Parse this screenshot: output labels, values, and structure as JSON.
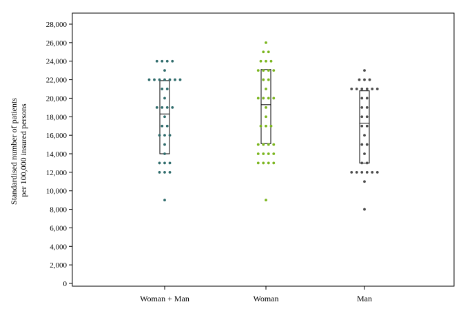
{
  "chart_data": {
    "type": "scatter",
    "subtype": "dot-plot-with-box",
    "title": "",
    "ylabel_lines": [
      "Standardised number of patients",
      "per 100,000 insured persons"
    ],
    "xlabel": "",
    "ylim": [
      0,
      29000
    ],
    "yticks": [
      0,
      2000,
      4000,
      6000,
      8000,
      10000,
      12000,
      14000,
      16000,
      18000,
      20000,
      22000,
      24000,
      26000,
      28000
    ],
    "ytick_labels": [
      "0",
      "2,000",
      "4,000",
      "6,000",
      "8,000",
      "10,000",
      "12,000",
      "14,000",
      "16,000",
      "18,000",
      "20,000",
      "22,000",
      "24,000",
      "26,000",
      "28,000"
    ],
    "grid": false,
    "legend": "none",
    "categories": [
      "Woman + Man",
      "Woman",
      "Man"
    ],
    "series": [
      {
        "category": "Woman + Man",
        "color": "#2e6b6b",
        "box": {
          "q1": 14000,
          "median": 18300,
          "q3": 21900
        },
        "points": [
          9000,
          12000,
          12000,
          12000,
          13000,
          13000,
          13000,
          14000,
          15000,
          16000,
          16000,
          16000,
          17000,
          17000,
          18000,
          19000,
          19000,
          19000,
          19000,
          20000,
          21000,
          21000,
          22000,
          22000,
          22000,
          22000,
          22000,
          22000,
          22000,
          23000,
          24000,
          24000,
          24000,
          24000
        ]
      },
      {
        "category": "Woman",
        "color": "#7ab51d",
        "box": {
          "q1": 15100,
          "median": 19300,
          "q3": 23100
        },
        "points": [
          9000,
          13000,
          13000,
          13000,
          13000,
          14000,
          14000,
          14000,
          14000,
          15000,
          15000,
          15000,
          15000,
          17000,
          17000,
          17000,
          18000,
          19000,
          20000,
          20000,
          20000,
          20000,
          21000,
          22000,
          22000,
          23000,
          23000,
          23000,
          23000,
          24000,
          24000,
          24000,
          25000,
          25000,
          26000
        ]
      },
      {
        "category": "Man",
        "color": "#4a4a4a",
        "box": {
          "q1": 13000,
          "median": 17300,
          "q3": 20800
        },
        "points": [
          8000,
          11000,
          12000,
          12000,
          12000,
          12000,
          12000,
          12000,
          13000,
          13000,
          14000,
          15000,
          15000,
          16000,
          17000,
          17000,
          18000,
          18000,
          19000,
          19000,
          20000,
          20000,
          21000,
          21000,
          21000,
          21000,
          21000,
          21000,
          22000,
          22000,
          22000,
          23000
        ]
      }
    ]
  }
}
